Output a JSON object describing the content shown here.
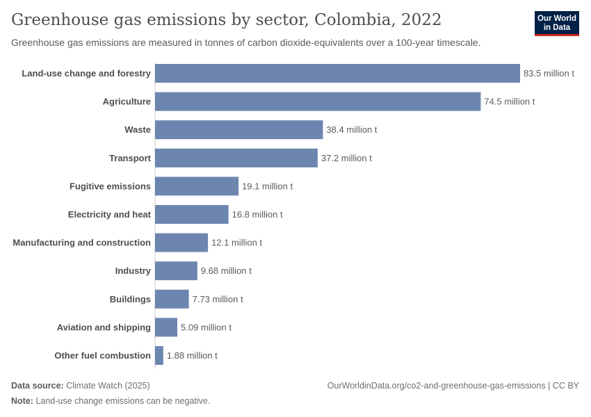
{
  "header": {
    "title": "Greenhouse gas emissions by sector, Colombia, 2022",
    "subtitle": "Greenhouse gas emissions are measured in tonnes of carbon dioxide-equivalents over a 100-year timescale."
  },
  "logo": {
    "line1": "Our World",
    "line2": "in Data",
    "bg_color": "#002147",
    "accent_color": "#ce261e"
  },
  "footer": {
    "source_label": "Data source:",
    "source_value": "Climate Watch (2025)",
    "note_label": "Note:",
    "note_value": "Land-use change emissions can be negative.",
    "url": "OurWorldinData.org/co2-and-greenhouse-gas-emissions | CC BY"
  },
  "chart_data": {
    "type": "bar",
    "orientation": "horizontal",
    "title": "Greenhouse gas emissions by sector, Colombia, 2022",
    "unit": "million t",
    "bar_color": "#6d86b0",
    "categories": [
      "Land-use change and forestry",
      "Agriculture",
      "Waste",
      "Transport",
      "Fugitive emissions",
      "Electricity and heat",
      "Manufacturing and construction",
      "Industry",
      "Buildings",
      "Aviation and shipping",
      "Other fuel combustion"
    ],
    "values": [
      83.5,
      74.5,
      38.4,
      37.2,
      19.1,
      16.8,
      12.1,
      9.68,
      7.73,
      5.09,
      1.88
    ],
    "value_labels": [
      "83.5 million t",
      "74.5 million t",
      "38.4 million t",
      "37.2 million t",
      "19.1 million t",
      "16.8 million t",
      "12.1 million t",
      "9.68 million t",
      "7.73 million t",
      "5.09 million t",
      "1.88 million t"
    ],
    "xlim": [
      0,
      83.5
    ],
    "grid": false
  }
}
